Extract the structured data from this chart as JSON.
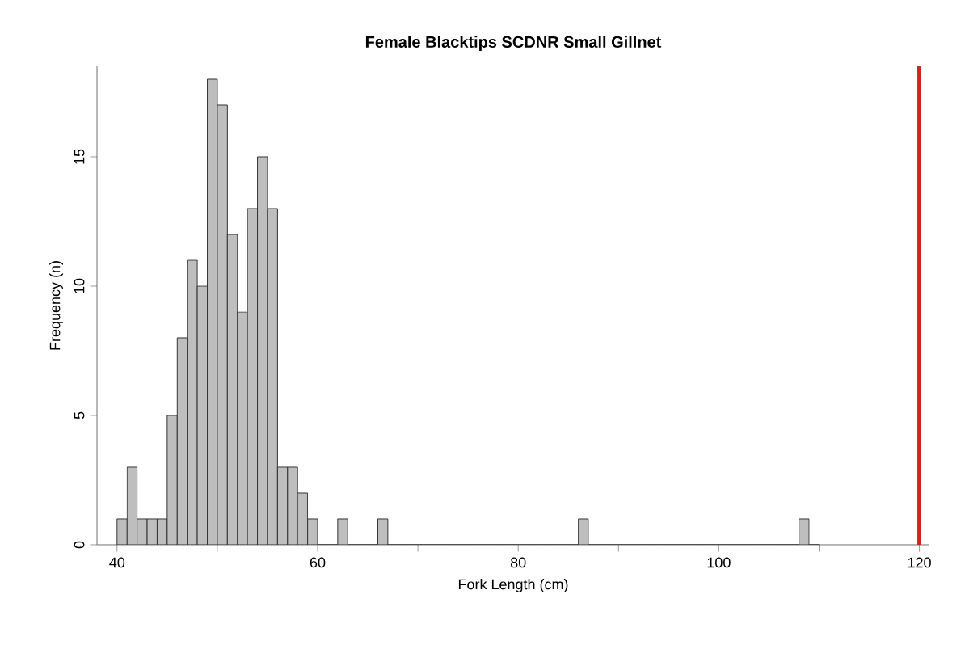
{
  "chart_data": {
    "type": "histogram",
    "title": "Female Blacktips SCDNR Small Gillnet",
    "xlabel": "Fork Length (cm)",
    "ylabel": "Frequency (n)",
    "bins": [
      40,
      41,
      42,
      43,
      44,
      45,
      46,
      47,
      48,
      49,
      50,
      51,
      52,
      53,
      54,
      55,
      56,
      57,
      58,
      59,
      60,
      61,
      62,
      63,
      64,
      65,
      66,
      67,
      68,
      69,
      70,
      71,
      72,
      73,
      74,
      75,
      76,
      77,
      78,
      79,
      80,
      81,
      82,
      83,
      84,
      85,
      86,
      87,
      88,
      89,
      90,
      91,
      92,
      93,
      94,
      95,
      96,
      97,
      98,
      99,
      100,
      101,
      102,
      103,
      104,
      105,
      106,
      107,
      108,
      109,
      110
    ],
    "values": [
      1,
      3,
      1,
      1,
      1,
      5,
      8,
      11,
      10,
      18,
      17,
      12,
      9,
      13,
      15,
      13,
      3,
      3,
      2,
      1,
      0,
      0,
      1,
      0,
      0,
      0,
      1,
      0,
      0,
      0,
      0,
      0,
      0,
      0,
      0,
      0,
      0,
      0,
      0,
      0,
      0,
      0,
      0,
      0,
      0,
      0,
      1,
      0,
      0,
      0,
      0,
      0,
      0,
      0,
      0,
      0,
      0,
      0,
      0,
      0,
      0,
      0,
      0,
      0,
      0,
      0,
      0,
      0,
      1,
      0
    ],
    "color": "#bebebe",
    "xlim": [
      38,
      121
    ],
    "ylim": [
      0,
      18.5
    ],
    "xticks": [
      40,
      {
        "value": 50,
        "label": null
      },
      60,
      {
        "value": 70,
        "label": null
      },
      80,
      {
        "value": 90,
        "label": null
      },
      100,
      {
        "value": 110,
        "label": null
      },
      120
    ],
    "yticks": [
      0,
      5,
      10,
      15
    ],
    "ref_lines": [
      {
        "axis": "x",
        "value": 120,
        "color": "#c8281e"
      }
    ],
    "grid": false
  }
}
